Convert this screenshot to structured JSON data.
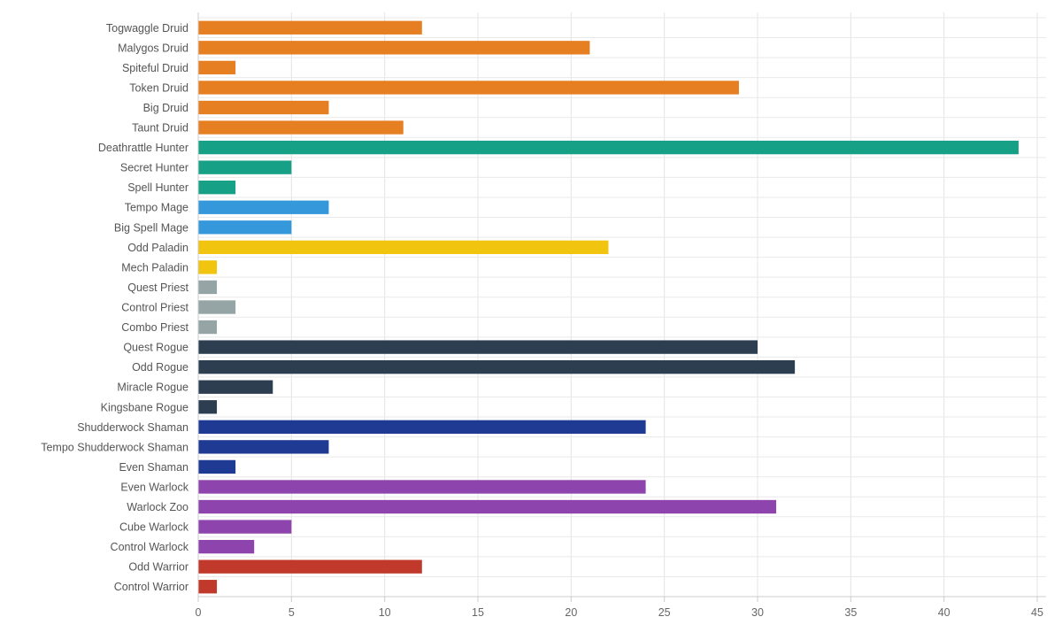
{
  "chart_data": {
    "type": "bar",
    "orientation": "horizontal",
    "title": "",
    "xlabel": "",
    "ylabel": "",
    "xlim": [
      0,
      45
    ],
    "xticks": [
      0,
      5,
      10,
      15,
      20,
      25,
      30,
      35,
      40,
      45
    ],
    "grid": true,
    "legend": "none",
    "categories": [
      "Togwaggle Druid",
      "Malygos Druid",
      "Spiteful Druid",
      "Token Druid",
      "Big Druid",
      "Taunt Druid",
      "Deathrattle Hunter",
      "Secret Hunter",
      "Spell Hunter",
      "Tempo Mage",
      "Big Spell Mage",
      "Odd Paladin",
      "Mech Paladin",
      "Quest Priest",
      "Control Priest",
      "Combo Priest",
      "Quest Rogue",
      "Odd Rogue",
      "Miracle Rogue",
      "Kingsbane Rogue",
      "Shudderwock Shaman",
      "Tempo Shudderwock Shaman",
      "Even Shaman",
      "Even Warlock",
      "Warlock Zoo",
      "Cube Warlock",
      "Control Warlock",
      "Odd Warrior",
      "Control Warrior"
    ],
    "values": [
      12,
      21,
      2,
      29,
      7,
      11,
      44,
      5,
      2,
      7,
      5,
      22,
      1,
      1,
      2,
      1,
      30,
      32,
      4,
      1,
      24,
      7,
      2,
      24,
      31,
      5,
      3,
      12,
      1
    ],
    "class_colors": {
      "druid": "#e67e22",
      "hunter": "#16a085",
      "mage": "#3498db",
      "paladin": "#f1c40f",
      "priest": "#95a5a6",
      "rogue": "#2c3e50",
      "shaman": "#1f3a93",
      "warlock": "#8e44ad",
      "warrior": "#c0392b"
    },
    "bar_classes": [
      "druid",
      "druid",
      "druid",
      "druid",
      "druid",
      "druid",
      "hunter",
      "hunter",
      "hunter",
      "mage",
      "mage",
      "paladin",
      "paladin",
      "priest",
      "priest",
      "priest",
      "rogue",
      "rogue",
      "rogue",
      "rogue",
      "shaman",
      "shaman",
      "shaman",
      "warlock",
      "warlock",
      "warlock",
      "warlock",
      "warrior",
      "warrior"
    ]
  }
}
